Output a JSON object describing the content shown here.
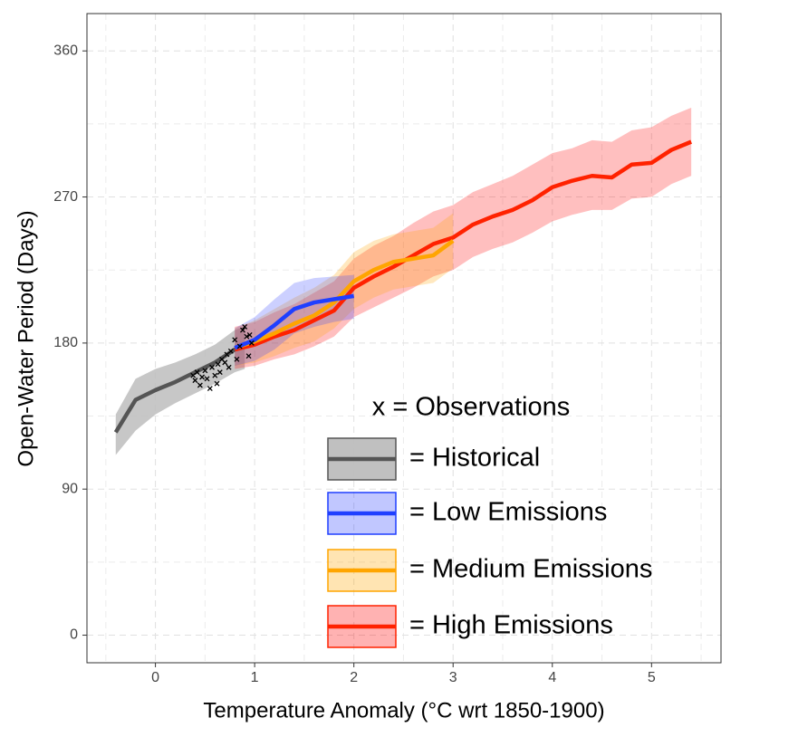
{
  "chart_data": {
    "type": "line",
    "x_label": "Temperature Anomaly (°C wrt 1850-1900)",
    "y_label": "Open-Water Period (Days)",
    "xlim": [
      -0.69,
      5.7
    ],
    "ylim": [
      -17,
      383
    ],
    "xticks": [
      0,
      1,
      2,
      3,
      4,
      5
    ],
    "yticks": [
      0,
      90,
      180,
      270,
      360
    ],
    "minor_xticks": [
      -0.5,
      0.5,
      1.5,
      2.5,
      3.5,
      4.5,
      5.5
    ],
    "minor_yticks": [
      45,
      135,
      225,
      315
    ],
    "grid": true,
    "legend_title": "x = Observations",
    "series": [
      {
        "name": "= Historical",
        "color": "#555555",
        "fill": "#bdbdbd",
        "x": [
          -0.4,
          -0.2,
          0,
          0.2,
          0.4,
          0.6,
          0.8,
          0.9
        ],
        "values": [
          125,
          145,
          151,
          156,
          162,
          168,
          176,
          178
        ],
        "lower": [
          111,
          126,
          136,
          143,
          149,
          155,
          162,
          164
        ],
        "upper": [
          136,
          158,
          164,
          168,
          173,
          179,
          188,
          190
        ]
      },
      {
        "name": "= High Emissions",
        "color": "#ff2200",
        "fill": "#ff0000",
        "x": [
          0.8,
          1.0,
          1.2,
          1.4,
          1.6,
          1.8,
          2.0,
          2.2,
          2.4,
          2.6,
          2.8,
          3.0,
          3.2,
          3.4,
          3.6,
          3.8,
          4.0,
          4.2,
          4.4,
          4.6,
          4.8,
          5.0,
          5.2,
          5.4
        ],
        "values": [
          176,
          179,
          184,
          188,
          194,
          200,
          214,
          221,
          227,
          234,
          241,
          245,
          253,
          258,
          262,
          268,
          276,
          280,
          283,
          282,
          290,
          291,
          299,
          304
        ],
        "lower": [
          164,
          166,
          170,
          173,
          178,
          184,
          196,
          202,
          208,
          214,
          221,
          225,
          233,
          238,
          242,
          248,
          255,
          259,
          262,
          262,
          269,
          270,
          278,
          283
        ],
        "upper": [
          190,
          193,
          199,
          204,
          211,
          218,
          232,
          240,
          246,
          254,
          261,
          265,
          273,
          278,
          283,
          290,
          297,
          300,
          305,
          304,
          311,
          313,
          320,
          325
        ]
      },
      {
        "name": "= Medium Emissions",
        "color": "#ffa500",
        "fill": "#ffa500",
        "x": [
          0.8,
          1.0,
          1.2,
          1.4,
          1.6,
          1.8,
          2.0,
          2.2,
          2.4,
          2.6,
          2.8,
          3.0
        ],
        "values": [
          177,
          181,
          186,
          192,
          197,
          205,
          218,
          225,
          230,
          232,
          234,
          243
        ],
        "lower": [
          166,
          168,
          172,
          177,
          181,
          189,
          201,
          208,
          213,
          215,
          217,
          226
        ],
        "upper": [
          189,
          194,
          201,
          208,
          214,
          222,
          236,
          243,
          247,
          249,
          251,
          260
        ]
      },
      {
        "name": "= Low Emissions",
        "color": "#1f3fff",
        "fill": "#3344ff",
        "x": [
          0.8,
          1.0,
          1.2,
          1.4,
          1.6,
          1.8,
          2.0
        ],
        "values": [
          177,
          182,
          191,
          201,
          205,
          207,
          209
        ],
        "lower": [
          166,
          169,
          176,
          186,
          190,
          193,
          195
        ],
        "upper": [
          189,
          196,
          207,
          217,
          220,
          221,
          222
        ]
      }
    ],
    "observations": {
      "color": "#000000",
      "x": [
        0.38,
        0.4,
        0.42,
        0.45,
        0.47,
        0.5,
        0.52,
        0.55,
        0.57,
        0.6,
        0.62,
        0.63,
        0.65,
        0.67,
        0.7,
        0.72,
        0.74,
        0.76,
        0.8,
        0.82,
        0.85,
        0.88,
        0.9,
        0.92,
        0.94,
        0.95,
        0.97
      ],
      "values": [
        160,
        157,
        162,
        154,
        159,
        163,
        158,
        152,
        165,
        160,
        155,
        167,
        162,
        170,
        168,
        173,
        165,
        175,
        182,
        170,
        178,
        188,
        190,
        184,
        172,
        185,
        180
      ]
    }
  }
}
